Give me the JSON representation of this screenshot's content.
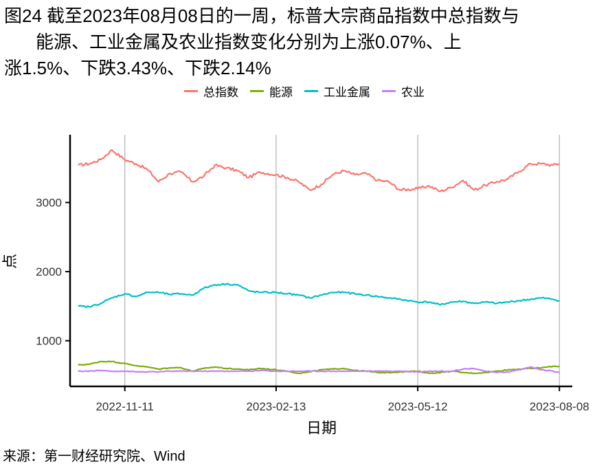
{
  "figure": {
    "title_line1": "图24  截至2023年08月08日的一周，标普大宗商品指数中总指数与",
    "title_line2": "能源、工业金属及农业指数变化分别为上涨0.07%、上",
    "title_line3": "涨1.5%、下跌3.43%、下跌2.14%",
    "source": "来源：第一财经研究院、Wind"
  },
  "chart_data": {
    "type": "line",
    "xlabel": "日期",
    "ylabel": "点",
    "yticks": [
      1000,
      2000,
      3000
    ],
    "ylim": [
      340,
      3980
    ],
    "xticks": [
      "2022-11-11",
      "2023-02-13",
      "2023-05-12",
      "2023-08-08"
    ],
    "xlim": [
      "2022-10-08",
      "2023-08-16"
    ],
    "grid": "vertical at x ticks",
    "legend_position": "top",
    "dates": [
      "2022-10-13",
      "2022-10-20",
      "2022-10-27",
      "2022-11-03",
      "2022-11-11",
      "2022-11-18",
      "2022-11-25",
      "2022-12-02",
      "2022-12-09",
      "2022-12-16",
      "2022-12-23",
      "2022-12-30",
      "2023-01-06",
      "2023-01-13",
      "2023-01-20",
      "2023-01-27",
      "2023-02-03",
      "2023-02-13",
      "2023-02-20",
      "2023-02-27",
      "2023-03-06",
      "2023-03-13",
      "2023-03-20",
      "2023-03-27",
      "2023-04-03",
      "2023-04-10",
      "2023-04-17",
      "2023-04-24",
      "2023-05-01",
      "2023-05-12",
      "2023-05-19",
      "2023-05-26",
      "2023-06-02",
      "2023-06-09",
      "2023-06-16",
      "2023-06-23",
      "2023-06-30",
      "2023-07-07",
      "2023-07-14",
      "2023-07-21",
      "2023-07-28",
      "2023-08-04",
      "2023-08-08"
    ],
    "series": [
      {
        "name": "总指数",
        "color": "#F8766D",
        "values": [
          3540,
          3560,
          3620,
          3760,
          3620,
          3560,
          3480,
          3300,
          3420,
          3440,
          3300,
          3380,
          3540,
          3500,
          3460,
          3360,
          3440,
          3400,
          3360,
          3300,
          3180,
          3260,
          3400,
          3460,
          3400,
          3420,
          3320,
          3300,
          3180,
          3200,
          3240,
          3160,
          3220,
          3320,
          3180,
          3250,
          3300,
          3340,
          3450,
          3560,
          3560,
          3540,
          3560
        ]
      },
      {
        "name": "能源",
        "color": "#7CAE00",
        "values": [
          650,
          660,
          700,
          700,
          670,
          640,
          620,
          590,
          610,
          610,
          560,
          600,
          620,
          600,
          590,
          580,
          600,
          580,
          560,
          530,
          550,
          580,
          590,
          600,
          570,
          560,
          540,
          540,
          550,
          560,
          530,
          540,
          560,
          540,
          530,
          540,
          560,
          580,
          590,
          600,
          610,
          630,
          630
        ]
      },
      {
        "name": "工业金属",
        "color": "#00BFC4",
        "values": [
          1500,
          1490,
          1540,
          1620,
          1680,
          1640,
          1700,
          1700,
          1670,
          1680,
          1660,
          1760,
          1810,
          1820,
          1810,
          1720,
          1700,
          1700,
          1680,
          1660,
          1620,
          1660,
          1700,
          1700,
          1680,
          1660,
          1640,
          1620,
          1600,
          1560,
          1560,
          1520,
          1560,
          1570,
          1540,
          1560,
          1540,
          1560,
          1580,
          1600,
          1620,
          1600,
          1580
        ]
      },
      {
        "name": "农业",
        "color": "#C77CFF",
        "values": [
          560,
          560,
          570,
          560,
          560,
          550,
          550,
          550,
          560,
          560,
          560,
          560,
          560,
          560,
          560,
          560,
          570,
          560,
          560,
          560,
          560,
          560,
          560,
          560,
          560,
          560,
          560,
          560,
          560,
          550,
          560,
          560,
          560,
          590,
          600,
          560,
          540,
          550,
          580,
          620,
          580,
          560,
          540
        ]
      }
    ]
  }
}
